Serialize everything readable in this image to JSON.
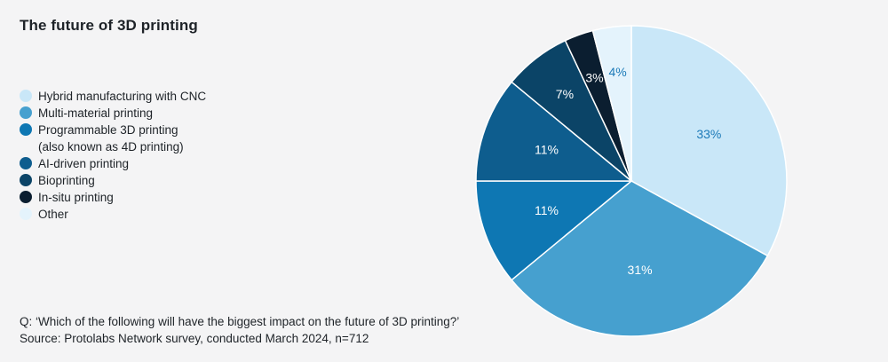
{
  "chart_data": {
    "type": "pie",
    "title": "The future of 3D printing",
    "legend_position": "left",
    "slices": [
      {
        "label": "Hybrid manufacturing with CNC",
        "value": 33,
        "value_label": "33%",
        "color": "#c9e7f8",
        "label_color": "#1c7ab8"
      },
      {
        "label": "Multi-material printing",
        "value": 31,
        "value_label": "31%",
        "color": "#46a0cf",
        "label_color": "#ffffff"
      },
      {
        "label": "Programmable 3D printing\n(also known as 4D printing)",
        "value": 11,
        "value_label": "11%",
        "color": "#0e77b3",
        "label_color": "#ffffff"
      },
      {
        "label": "AI-driven printing",
        "value": 11,
        "value_label": "11%",
        "color": "#0e5d8e",
        "label_color": "#ffffff"
      },
      {
        "label": "Bioprinting",
        "value": 7,
        "value_label": "7%",
        "color": "#0b4467",
        "label_color": "#ffffff"
      },
      {
        "label": "In-situ printing",
        "value": 3,
        "value_label": "3%",
        "color": "#0b1e30",
        "label_color": "#ffffff"
      },
      {
        "label": "Other",
        "value": 4,
        "value_label": "4%",
        "color": "#e4f3fc",
        "label_color": "#1c7ab8"
      }
    ]
  },
  "footnote": {
    "question": "Q: ‘Which of the following will have the biggest impact on the future of 3D printing?’",
    "source": "Source: Protolabs Network survey,  conducted March 2024, n=712"
  }
}
